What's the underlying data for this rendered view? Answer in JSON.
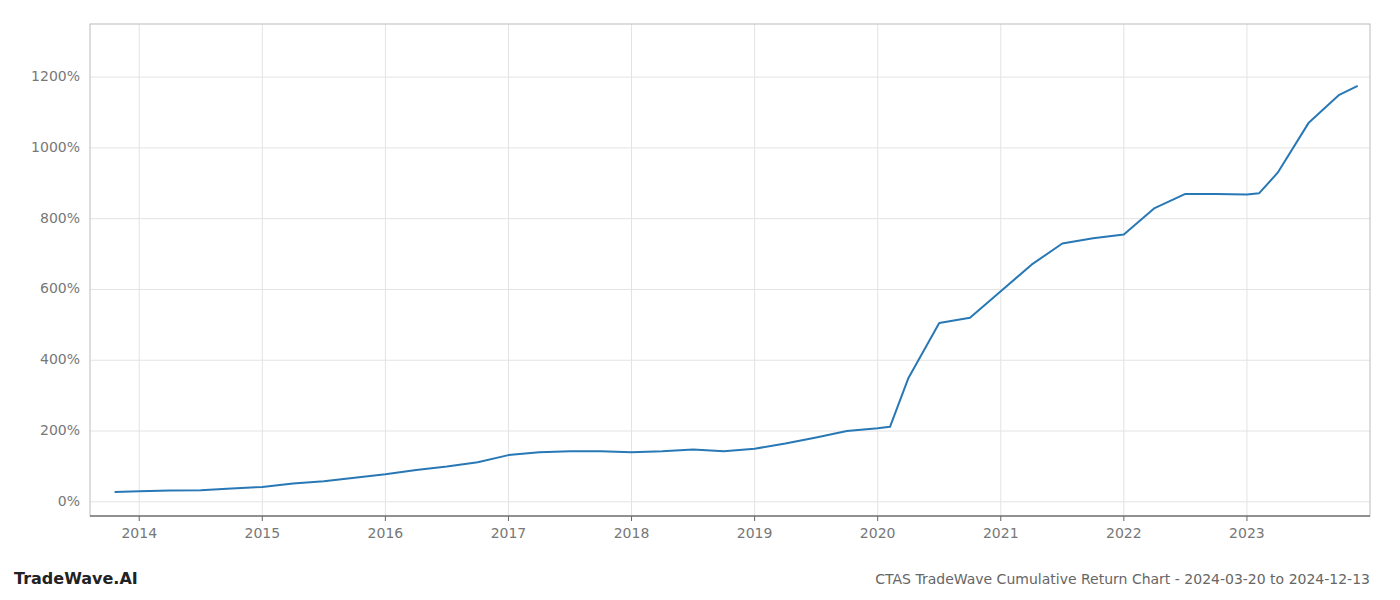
{
  "chart_data": {
    "type": "line",
    "title": "CTAS TradeWave Cumulative Return Chart - 2024-03-20 to 2024-12-13",
    "annotations": [
      "TradeWave.AI"
    ],
    "x": [
      2013.8,
      2014.0,
      2014.25,
      2014.5,
      2014.75,
      2015.0,
      2015.25,
      2015.5,
      2015.75,
      2016.0,
      2016.25,
      2016.5,
      2016.75,
      2017.0,
      2017.25,
      2017.5,
      2017.75,
      2018.0,
      2018.25,
      2018.5,
      2018.75,
      2019.0,
      2019.25,
      2019.5,
      2019.75,
      2020.0,
      2020.1,
      2020.25,
      2020.5,
      2020.75,
      2021.0,
      2021.25,
      2021.5,
      2021.75,
      2022.0,
      2022.25,
      2022.5,
      2022.75,
      2023.0,
      2023.1,
      2023.25,
      2023.5,
      2023.75,
      2023.9
    ],
    "values": [
      28,
      30,
      32,
      33,
      38,
      42,
      52,
      58,
      68,
      78,
      90,
      100,
      112,
      132,
      140,
      143,
      143,
      140,
      143,
      148,
      143,
      150,
      165,
      182,
      200,
      208,
      212,
      350,
      505,
      520,
      595,
      670,
      730,
      745,
      755,
      830,
      870,
      870,
      868,
      872,
      930,
      1070,
      1150,
      1175
    ],
    "color": "#2878b5",
    "xlim": [
      2013.6,
      2024.0
    ],
    "xticks": [
      2014,
      2015,
      2016,
      2017,
      2018,
      2019,
      2020,
      2021,
      2022,
      2023
    ],
    "ylim": [
      -40,
      1350
    ],
    "yticks": [
      {
        "value": 0,
        "label": "0%"
      },
      {
        "value": 200,
        "label": "200%"
      },
      {
        "value": 400,
        "label": "400%"
      },
      {
        "value": 600,
        "label": "600%"
      },
      {
        "value": 800,
        "label": "800%"
      },
      {
        "value": 1000,
        "label": "1000%"
      },
      {
        "value": 1200,
        "label": "1200%"
      }
    ],
    "grid": true
  }
}
